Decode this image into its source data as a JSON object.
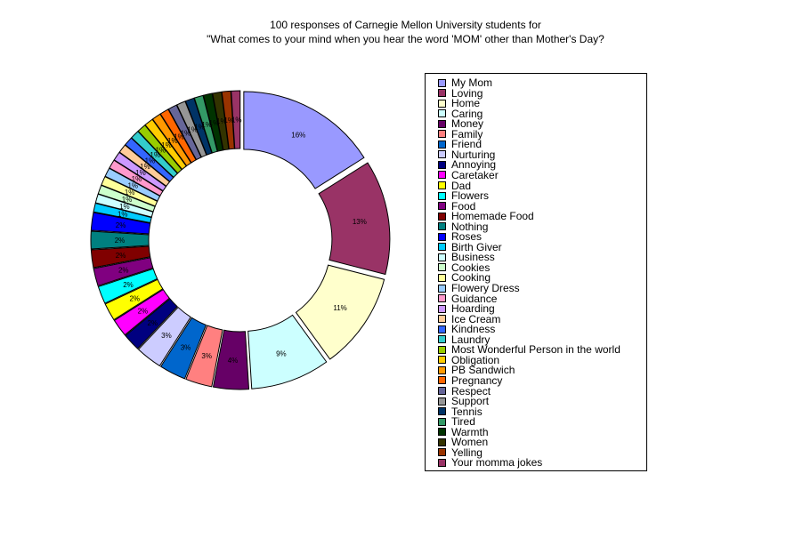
{
  "chart_data": {
    "type": "pie",
    "title_line1": "100 responses of Carnegie Mellon University students for",
    "title_line2": "\"What comes to your mind when you hear the word 'MOM' other than Mother's Day?",
    "categories": [
      "My Mom",
      "Loving",
      "Home",
      "Caring",
      "Money",
      "Family",
      "Friend",
      "Nurturing",
      "Annoying",
      "Caretaker",
      "Dad",
      "Flowers",
      "Food",
      "Homemade Food",
      "Nothing",
      "Roses",
      "Birth Giver",
      "Business",
      "Cookies",
      "Cooking",
      "Flowery Dress",
      "Guidance",
      "Hoarding",
      "Ice Cream",
      "Kindness",
      "Laundry",
      "Most Wonderful Person in the world",
      "Obligation",
      "PB Sandwich",
      "Pregnancy",
      "Respect",
      "Support",
      "Tennis",
      "Tired",
      "Warmth",
      "Women",
      "Yelling",
      "Your momma jokes"
    ],
    "values": [
      16,
      13,
      11,
      9,
      4,
      3,
      3,
      3,
      2,
      2,
      2,
      2,
      2,
      2,
      2,
      2,
      1,
      1,
      1,
      1,
      1,
      1,
      1,
      1,
      1,
      1,
      1,
      1,
      1,
      1,
      1,
      1,
      1,
      1,
      1,
      1,
      1,
      1
    ],
    "labels": [
      "16%",
      "13%",
      "11%",
      "9%",
      "4%",
      "3%",
      "3%",
      "3%",
      "2%",
      "2%",
      "2%",
      "2%",
      "2%",
      "2%",
      "2%",
      "2%",
      "1%",
      "1%",
      "1%",
      "1%",
      "1%",
      "1%",
      "1%",
      "1%",
      "1%",
      "1%",
      "1%",
      "1%",
      "1%",
      "1%",
      "1%",
      "1%",
      "1%",
      "1%",
      "1%",
      "1%",
      "1%",
      "1%"
    ],
    "colors": [
      "#9999ff",
      "#993366",
      "#ffffcc",
      "#ccffff",
      "#660066",
      "#ff8080",
      "#0066cc",
      "#ccccff",
      "#000080",
      "#ff00ff",
      "#ffff00",
      "#00ffff",
      "#800080",
      "#800000",
      "#008080",
      "#0000ff",
      "#00ccff",
      "#ccffff",
      "#ccffcc",
      "#ffff99",
      "#99ccff",
      "#ff99cc",
      "#cc99ff",
      "#ffcc99",
      "#3366ff",
      "#33cccc",
      "#99cc00",
      "#ffcc00",
      "#ff9900",
      "#ff6600",
      "#666699",
      "#969696",
      "#003366",
      "#339966",
      "#003300",
      "#333300",
      "#993300",
      "#993366"
    ],
    "legend_position": "right"
  }
}
